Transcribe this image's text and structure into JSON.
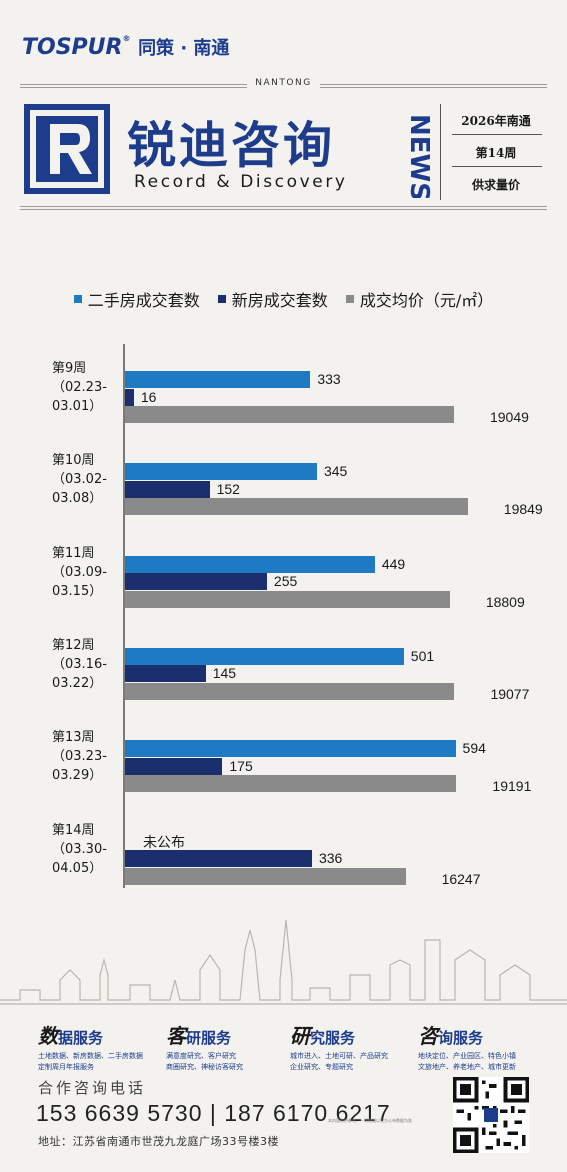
{
  "header": {
    "brand_logo": "TOSPUR",
    "brand_reg": "®",
    "brand_org": "同策 · 南通",
    "city_en": "NANTONG",
    "title_cn": "锐迪咨询",
    "title_en": "Record & Discovery",
    "news": "NEWS",
    "side_year": "2026年南通",
    "side_week": "第14周",
    "side_topic": "供求量价",
    "brand_color": "#1d3c8c"
  },
  "legend": [
    {
      "label": "二手房成交套数",
      "color": "#1f7ac4"
    },
    {
      "label": "新房成交套数",
      "color": "#1b2f6e"
    },
    {
      "label": "成交均价（元/㎡）",
      "color": "#8a8a8a"
    }
  ],
  "chart_data": {
    "type": "bar",
    "orientation": "horizontal",
    "categories": [
      {
        "week": "第9周",
        "range_start": "（02.23-",
        "range_end": "03.01）"
      },
      {
        "week": "第10周",
        "range_start": "（03.02-",
        "range_end": "03.08）"
      },
      {
        "week": "第11周",
        "range_start": "（03.09-",
        "range_end": "03.15）"
      },
      {
        "week": "第12周",
        "range_start": "（03.16-",
        "range_end": "03.22）"
      },
      {
        "week": "第13周",
        "range_start": "（03.23-",
        "range_end": "03.29）"
      },
      {
        "week": "第14周",
        "range_start": "（03.30-",
        "range_end": "04.05）"
      }
    ],
    "series": [
      {
        "name": "二手房成交套数",
        "color": "#1f7ac4",
        "values": [
          333,
          345,
          449,
          501,
          594,
          null
        ],
        "missing_label": "未公布"
      },
      {
        "name": "新房成交套数",
        "color": "#1b2f6e",
        "values": [
          16,
          152,
          255,
          145,
          175,
          336
        ]
      },
      {
        "name": "成交均价（元/㎡）",
        "color": "#8a8a8a",
        "values": [
          19049,
          19849,
          18809,
          19077,
          19191,
          16247
        ]
      }
    ],
    "grid": false,
    "legend_position": "top"
  },
  "footer": {
    "services": [
      {
        "title_big": "数",
        "title_rest": "据服务",
        "desc": [
          "土地数据、新房数据、二手房数据",
          "定制周月年报服务"
        ]
      },
      {
        "title_big": "客",
        "title_rest": "研服务",
        "desc": [
          "满意度研究、客户研究",
          "商圈研究、神秘访客研究"
        ]
      },
      {
        "title_big": "研",
        "title_rest": "究服务",
        "desc": [
          "城市进入、土地可研、产品研究",
          "企业研究、专题研究"
        ]
      },
      {
        "title_big": "咨",
        "title_rest": "询服务",
        "desc": [
          "地块定位、产业园区、特色小镇",
          "文旅地产、养老地产、城市更新"
        ]
      }
    ],
    "contact_label": "合作咨询电话",
    "phones": "153 6639 5730 | 187 6170 6217",
    "address": "地址：江苏省南通市世茂九龙庭广场33号楼3楼",
    "note": "本内容仅供参考，一切数据以官方公布数据为准"
  }
}
